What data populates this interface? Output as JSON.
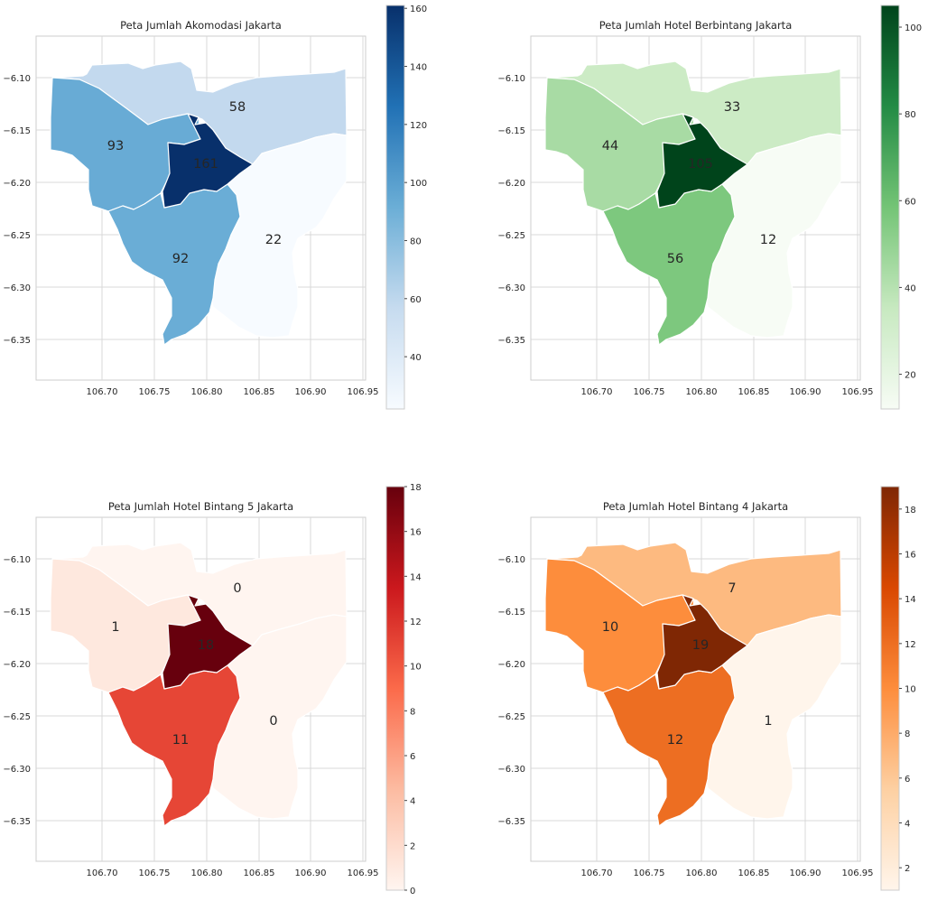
{
  "chart_data": [
    {
      "type": "choropleth",
      "title": "Peta Jumlah Akomodasi Jakarta",
      "colormap": "Blues",
      "palette": [
        "#f7fbff",
        "#c6dbef",
        "#6baed6",
        "#2171b5",
        "#08306b"
      ],
      "xlim": [
        106.675,
        106.99
      ],
      "ylim": [
        -6.388,
        -6.065
      ],
      "xticks": [
        "106.70",
        "106.75",
        "106.80",
        "106.85",
        "106.90",
        "106.95"
      ],
      "yticks": [
        "−6.10",
        "−6.15",
        "−6.20",
        "−6.25",
        "−6.30",
        "−6.35"
      ],
      "cbar_range": [
        22,
        161
      ],
      "cbar_ticks": [
        "40",
        "60",
        "80",
        "100",
        "120",
        "140",
        "160"
      ],
      "regions": [
        {
          "region": "north",
          "value": 58,
          "label": "58"
        },
        {
          "region": "west",
          "value": 93,
          "label": "93"
        },
        {
          "region": "central",
          "value": 161,
          "label": "161"
        },
        {
          "region": "south",
          "value": 92,
          "label": "92"
        },
        {
          "region": "east",
          "value": 22,
          "label": "22"
        }
      ]
    },
    {
      "type": "choropleth",
      "title": "Peta Jumlah Hotel Berbintang Jakarta",
      "colormap": "Greens",
      "palette": [
        "#f7fcf5",
        "#c7e9c0",
        "#74c476",
        "#238b45",
        "#00441b"
      ],
      "xlim": [
        106.675,
        106.99
      ],
      "ylim": [
        -6.388,
        -6.065
      ],
      "xticks": [
        "106.70",
        "106.75",
        "106.80",
        "106.85",
        "106.90",
        "106.95"
      ],
      "yticks": [
        "−6.10",
        "−6.15",
        "−6.20",
        "−6.25",
        "−6.30",
        "−6.35"
      ],
      "cbar_range": [
        12,
        105
      ],
      "cbar_ticks": [
        "20",
        "40",
        "60",
        "80",
        "100"
      ],
      "regions": [
        {
          "region": "north",
          "value": 33,
          "label": "33"
        },
        {
          "region": "west",
          "value": 44,
          "label": "44"
        },
        {
          "region": "central",
          "value": 105,
          "label": "105"
        },
        {
          "region": "south",
          "value": 56,
          "label": "56"
        },
        {
          "region": "east",
          "value": 12,
          "label": "12"
        }
      ]
    },
    {
      "type": "choropleth",
      "title": "Peta Jumlah Hotel Bintang 5 Jakarta",
      "colormap": "Reds",
      "palette": [
        "#fff5f0",
        "#fcbba1",
        "#fb6a4a",
        "#cb181d",
        "#67000d"
      ],
      "xlim": [
        106.675,
        106.99
      ],
      "ylim": [
        -6.388,
        -6.065
      ],
      "xticks": [
        "106.70",
        "106.75",
        "106.80",
        "106.85",
        "106.90",
        "106.95"
      ],
      "yticks": [
        "−6.10",
        "−6.15",
        "−6.20",
        "−6.25",
        "−6.30",
        "−6.35"
      ],
      "cbar_range": [
        0,
        18
      ],
      "cbar_ticks": [
        "0",
        "2",
        "4",
        "6",
        "8",
        "10",
        "12",
        "14",
        "16",
        "18"
      ],
      "regions": [
        {
          "region": "north",
          "value": 0,
          "label": "0"
        },
        {
          "region": "west",
          "value": 1,
          "label": "1"
        },
        {
          "region": "central",
          "value": 18,
          "label": "18"
        },
        {
          "region": "south",
          "value": 11,
          "label": "11"
        },
        {
          "region": "east",
          "value": 0,
          "label": "0"
        }
      ]
    },
    {
      "type": "choropleth",
      "title": "Peta Jumlah Hotel Bintang 4 Jakarta",
      "colormap": "Oranges",
      "palette": [
        "#fff5eb",
        "#fdd0a2",
        "#fd8d3c",
        "#d94801",
        "#7f2704"
      ],
      "xlim": [
        106.675,
        106.99
      ],
      "ylim": [
        -6.388,
        -6.065
      ],
      "xticks": [
        "106.70",
        "106.75",
        "106.80",
        "106.85",
        "106.90",
        "106.95"
      ],
      "yticks": [
        "−6.10",
        "−6.15",
        "−6.20",
        "−6.25",
        "−6.30",
        "−6.35"
      ],
      "cbar_range": [
        1,
        19
      ],
      "cbar_ticks": [
        "2",
        "4",
        "6",
        "8",
        "10",
        "12",
        "14",
        "16",
        "18"
      ],
      "regions": [
        {
          "region": "north",
          "value": 7,
          "label": "7"
        },
        {
          "region": "west",
          "value": 10,
          "label": "10"
        },
        {
          "region": "central",
          "value": 19,
          "label": "19"
        },
        {
          "region": "south",
          "value": 12,
          "label": "12"
        },
        {
          "region": "east",
          "value": 1,
          "label": "1"
        }
      ]
    }
  ]
}
